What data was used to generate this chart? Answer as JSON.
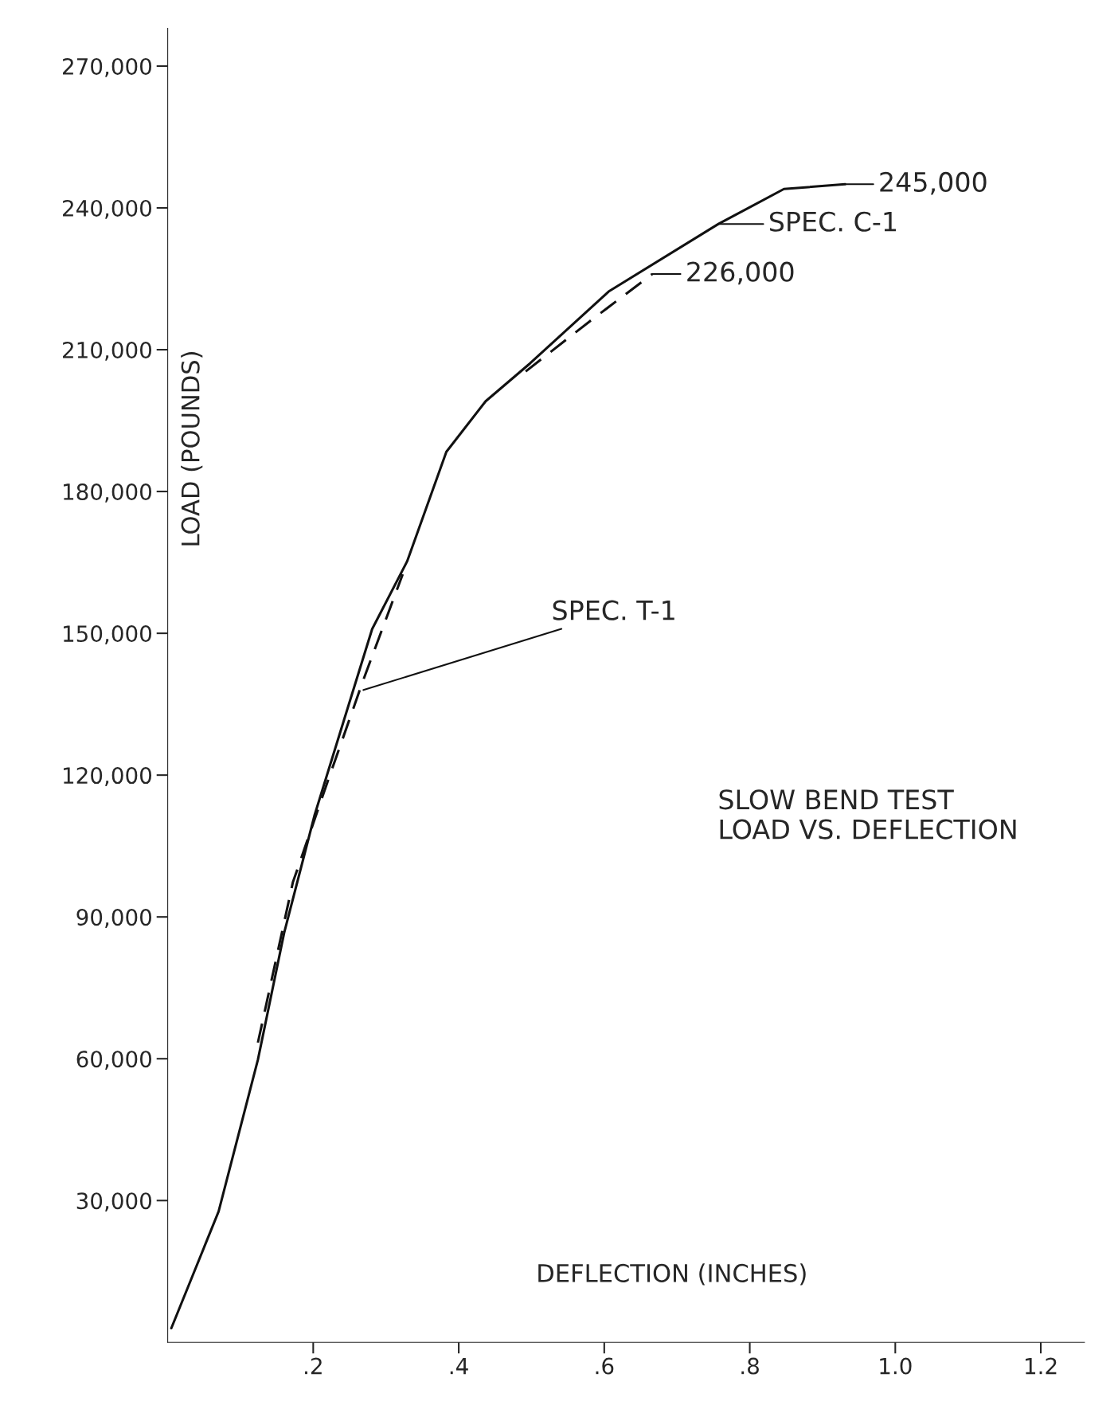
{
  "chart_data": {
    "type": "line",
    "xlabel": "DEFLECTION (INCHES)",
    "ylabel": "LOAD (POUNDS)",
    "xlim": [
      0,
      1.26
    ],
    "ylim": [
      0,
      278000
    ],
    "xticks": [
      {
        "value": 0.2,
        "label": ".2"
      },
      {
        "value": 0.4,
        "label": ".4"
      },
      {
        "value": 0.6,
        "label": ".6"
      },
      {
        "value": 0.8,
        "label": ".8"
      },
      {
        "value": 1.0,
        "label": "1.0"
      },
      {
        "value": 1.2,
        "label": "1.2"
      }
    ],
    "yticks": [
      {
        "value": 30000,
        "label": "30,000"
      },
      {
        "value": 60000,
        "label": "60,000"
      },
      {
        "value": 90000,
        "label": "90,000"
      },
      {
        "value": 120000,
        "label": "120,000"
      },
      {
        "value": 150000,
        "label": "150,000"
      },
      {
        "value": 180000,
        "label": "180,000"
      },
      {
        "value": 210000,
        "label": "210,000"
      },
      {
        "value": 240000,
        "label": "240,000"
      },
      {
        "value": 270000,
        "label": "270,000"
      }
    ],
    "grid": false,
    "legend": false,
    "marker": "none",
    "series": [
      {
        "color": "#111111",
        "line_style": "solid",
        "x": [
          0.005,
          0.07,
          0.124,
          0.16,
          0.202,
          0.245,
          0.281,
          0.329,
          0.383,
          0.437,
          0.498,
          0.606,
          0.757,
          0.847,
          0.931
        ],
        "values": [
          3000,
          27700,
          59800,
          86600,
          111600,
          133000,
          150900,
          165200,
          188400,
          199100,
          207100,
          222300,
          236600,
          244000,
          245000
        ]
      },
      {
        "color": "#111111",
        "line_style": "dashed",
        "x": [
          0.124,
          0.172,
          0.22,
          0.269,
          0.323,
          0.4,
          0.492,
          0.58,
          0.666
        ],
        "values": [
          63400,
          97300,
          118700,
          140200,
          162500,
          null,
          205400,
          216000,
          226000
        ]
      }
    ],
    "annotations": [
      {
        "text": "245,000",
        "x": 0.931,
        "y": 245000
      },
      {
        "text": "226,000",
        "x": 0.666,
        "y": 226000
      },
      {
        "text": "SPEC. C-1",
        "x": 0.757,
        "y": 236600
      },
      {
        "text": "SPEC. T-1",
        "x": 0.269,
        "y": 138000
      },
      "SLOW BEND TEST\nLOAD VS. DEFLECTION"
    ]
  }
}
